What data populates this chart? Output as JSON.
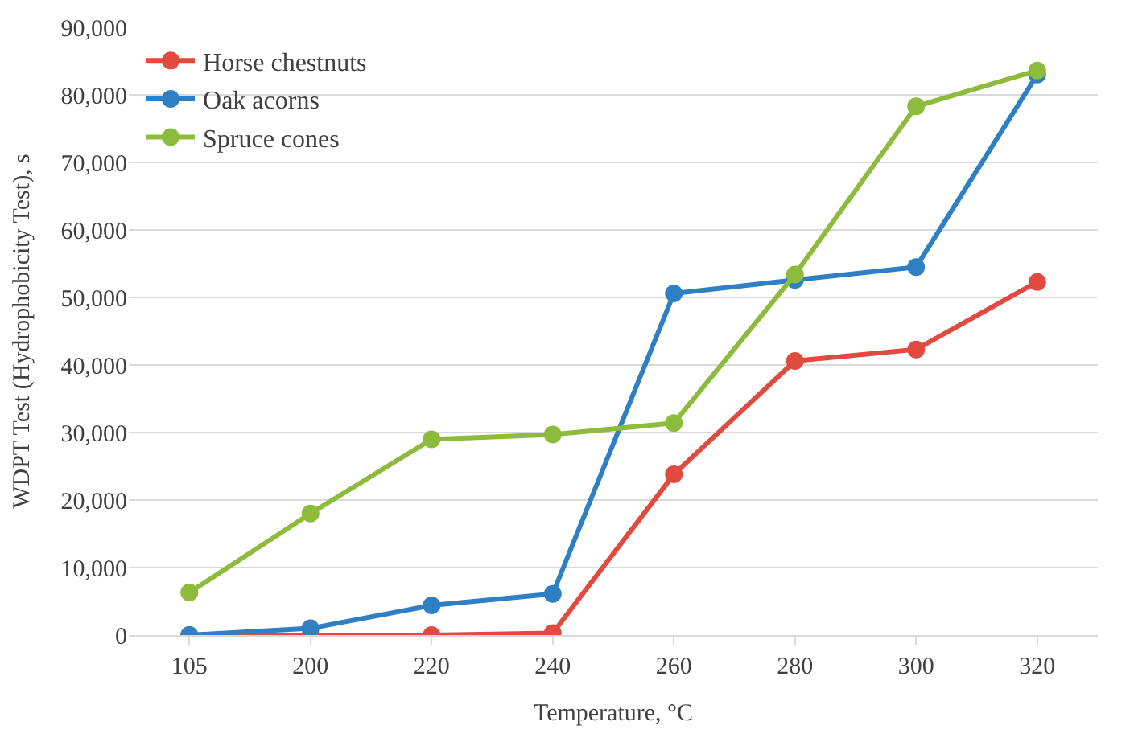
{
  "chart_data": {
    "type": "line",
    "xlabel": "Temperature, °C",
    "ylabel": "WDPT Test (Hydrophobicity Test), s",
    "categories": [
      "105",
      "200",
      "220",
      "240",
      "260",
      "280",
      "300",
      "320"
    ],
    "series": [
      {
        "name": "Horse chestnuts",
        "color": "#e04a3f",
        "values": [
          0,
          0,
          0,
          300,
          23800,
          40600,
          42300,
          52300
        ]
      },
      {
        "name": "Oak acorns",
        "color": "#2e7fc3",
        "values": [
          0,
          1000,
          4400,
          6100,
          50600,
          52600,
          54500,
          83000
        ]
      },
      {
        "name": "Spruce cones",
        "color": "#8dbb3c",
        "values": [
          6300,
          18000,
          29000,
          29700,
          31400,
          53400,
          78300,
          83600
        ]
      }
    ],
    "ylim": [
      0,
      90000
    ],
    "yticks": [
      {
        "value": 0,
        "label": "0"
      },
      {
        "value": 10000,
        "label": "10,000"
      },
      {
        "value": 20000,
        "label": "20,000"
      },
      {
        "value": 30000,
        "label": "30,000"
      },
      {
        "value": 40000,
        "label": "40,000"
      },
      {
        "value": 50000,
        "label": "50,000"
      },
      {
        "value": 60000,
        "label": "60,000"
      },
      {
        "value": 70000,
        "label": "70,000"
      },
      {
        "value": 80000,
        "label": "80,000"
      },
      {
        "value": 90000,
        "label": "90,000"
      }
    ],
    "grid": "y",
    "legend": "top left",
    "marker": "circle",
    "line_style": "solid"
  }
}
